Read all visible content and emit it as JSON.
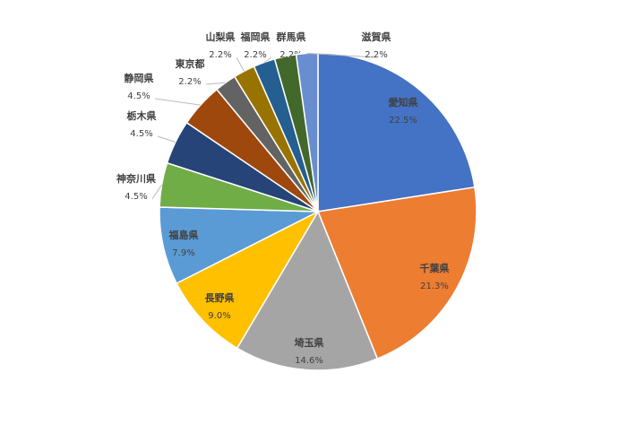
{
  "chart_data": {
    "type": "pie",
    "categories": [
      "愛知県",
      "千葉県",
      "埼玉県",
      "長野県",
      "福島県",
      "神奈川県",
      "栃木県",
      "静岡県",
      "東京都",
      "山梨県",
      "福岡県",
      "群馬県",
      "滋賀県"
    ],
    "values": [
      22.5,
      21.3,
      14.6,
      9.0,
      7.9,
      4.5,
      4.5,
      4.5,
      2.2,
      2.2,
      2.2,
      2.2,
      2.2
    ],
    "value_labels": [
      "22.5%",
      "21.3%",
      "14.6%",
      "9.0%",
      "7.9%",
      "4.5%",
      "4.5%",
      "4.5%",
      "2.2%",
      "2.2%",
      "2.2%",
      "2.2%",
      "2.2%"
    ],
    "colors": [
      "#4472c4",
      "#ed7d31",
      "#a5a5a5",
      "#ffc000",
      "#5b9bd5",
      "#70ad47",
      "#264478",
      "#9e480e",
      "#636363",
      "#997300",
      "#255e91",
      "#43682b",
      "#698ed0"
    ]
  }
}
